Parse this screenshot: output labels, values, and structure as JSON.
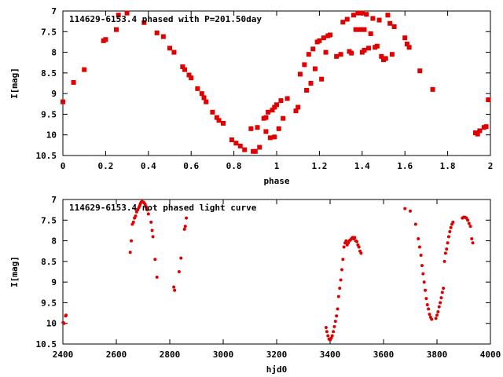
{
  "chart_data": [
    {
      "type": "scatter",
      "title": "114629-6153.4 phased with P=201.50day",
      "xlabel": "phase",
      "ylabel": "I[mag]",
      "xlim": [
        0,
        2
      ],
      "ylim": [
        10.5,
        7
      ],
      "y_inverted": true,
      "grid": false,
      "marker_color": "#e00000",
      "xticks": [
        0,
        0.2,
        0.4,
        0.6,
        0.8,
        1,
        1.2,
        1.4,
        1.6,
        1.8,
        2
      ],
      "xtick_labels": [
        "0",
        "0.2",
        "0.4",
        "0.6",
        "0.8",
        "1",
        "1.2",
        "1.4",
        "1.6",
        "1.8",
        "2"
      ],
      "yticks": [
        7,
        7.5,
        8,
        8.5,
        9,
        9.5,
        10,
        10.5
      ],
      "ytick_labels": [
        "7",
        "7.5",
        "8",
        "8.5",
        "9",
        "9.5",
        "10",
        "10.5"
      ],
      "points": [
        [
          0.0,
          9.2
        ],
        [
          0.05,
          8.73
        ],
        [
          0.1,
          8.42
        ],
        [
          0.19,
          7.72
        ],
        [
          0.2,
          7.69
        ],
        [
          0.25,
          7.45
        ],
        [
          0.26,
          7.1
        ],
        [
          0.3,
          7.05
        ],
        [
          0.38,
          7.28
        ],
        [
          0.44,
          7.53
        ],
        [
          0.47,
          7.62
        ],
        [
          0.5,
          7.9
        ],
        [
          0.52,
          8.0
        ],
        [
          0.56,
          8.35
        ],
        [
          0.57,
          8.42
        ],
        [
          0.59,
          8.55
        ],
        [
          0.6,
          8.62
        ],
        [
          0.63,
          8.88
        ],
        [
          0.65,
          9.0
        ],
        [
          0.66,
          9.1
        ],
        [
          0.67,
          9.2
        ],
        [
          0.7,
          9.45
        ],
        [
          0.72,
          9.58
        ],
        [
          0.73,
          9.65
        ],
        [
          0.75,
          9.72
        ],
        [
          0.79,
          10.12
        ],
        [
          0.81,
          10.2
        ],
        [
          0.83,
          10.27
        ],
        [
          0.85,
          10.36
        ],
        [
          0.88,
          9.85
        ],
        [
          0.89,
          10.4
        ],
        [
          0.9,
          10.4
        ],
        [
          0.91,
          9.82
        ],
        [
          0.92,
          10.3
        ],
        [
          0.94,
          9.6
        ],
        [
          0.95,
          9.58
        ],
        [
          0.95,
          9.92
        ],
        [
          0.96,
          9.45
        ],
        [
          0.98,
          9.4
        ],
        [
          0.99,
          9.33
        ],
        [
          1.0,
          9.27
        ],
        [
          1.02,
          9.17
        ],
        [
          0.97,
          10.07
        ],
        [
          0.99,
          10.05
        ],
        [
          1.01,
          9.85
        ],
        [
          1.03,
          9.6
        ],
        [
          1.05,
          9.12
        ],
        [
          1.09,
          9.42
        ],
        [
          1.1,
          9.33
        ],
        [
          1.11,
          8.53
        ],
        [
          1.13,
          8.3
        ],
        [
          1.14,
          8.92
        ],
        [
          1.15,
          8.05
        ],
        [
          1.16,
          8.75
        ],
        [
          1.17,
          7.92
        ],
        [
          1.18,
          8.4
        ],
        [
          1.19,
          7.75
        ],
        [
          1.2,
          7.72
        ],
        [
          1.21,
          8.65
        ],
        [
          1.22,
          7.65
        ],
        [
          1.23,
          8.0
        ],
        [
          1.24,
          7.6
        ],
        [
          1.25,
          7.58
        ],
        [
          1.28,
          8.1
        ],
        [
          1.3,
          8.05
        ],
        [
          1.31,
          7.27
        ],
        [
          1.33,
          7.2
        ],
        [
          1.34,
          7.98
        ],
        [
          1.35,
          8.02
        ],
        [
          1.36,
          7.1
        ],
        [
          1.37,
          7.45
        ],
        [
          1.38,
          7.05
        ],
        [
          1.39,
          7.45
        ],
        [
          1.4,
          8.0
        ],
        [
          1.4,
          7.05
        ],
        [
          1.41,
          7.45
        ],
        [
          1.41,
          7.95
        ],
        [
          1.42,
          7.08
        ],
        [
          1.43,
          7.9
        ],
        [
          1.44,
          7.55
        ],
        [
          1.45,
          7.18
        ],
        [
          1.46,
          7.88
        ],
        [
          1.47,
          7.85
        ],
        [
          1.48,
          7.22
        ],
        [
          1.49,
          8.1
        ],
        [
          1.5,
          8.18
        ],
        [
          1.51,
          8.15
        ],
        [
          1.52,
          7.1
        ],
        [
          1.53,
          7.3
        ],
        [
          1.54,
          8.05
        ],
        [
          1.55,
          7.38
        ],
        [
          1.6,
          7.65
        ],
        [
          1.61,
          7.8
        ],
        [
          1.62,
          7.88
        ],
        [
          1.67,
          8.45
        ],
        [
          1.73,
          8.9
        ],
        [
          1.93,
          9.95
        ],
        [
          1.94,
          9.98
        ],
        [
          1.95,
          9.9
        ],
        [
          1.97,
          9.82
        ],
        [
          1.98,
          9.8
        ],
        [
          1.99,
          9.15
        ]
      ]
    },
    {
      "type": "scatter",
      "title": "114629-6153.4 not phased light curve",
      "xlabel": "hjd0",
      "ylabel": "I[mag]",
      "xlim": [
        2400,
        4000
      ],
      "ylim": [
        10.5,
        7
      ],
      "y_inverted": true,
      "grid": false,
      "marker_color": "#e00000",
      "xticks": [
        2400,
        2600,
        2800,
        3000,
        3200,
        3400,
        3600,
        3800,
        4000
      ],
      "xtick_labels": [
        "2400",
        "2600",
        "2800",
        "3000",
        "3200",
        "3400",
        "3600",
        "3800",
        "4000"
      ],
      "yticks": [
        7,
        7.5,
        8,
        8.5,
        9,
        9.5,
        10,
        10.5
      ],
      "ytick_labels": [
        "7",
        "7.5",
        "8",
        "8.5",
        "9",
        "9.5",
        "10",
        "10.5"
      ],
      "points": [
        [
          2401,
          9.98
        ],
        [
          2404,
          10.0
        ],
        [
          2410,
          9.82
        ],
        [
          2412,
          9.8
        ],
        [
          2652,
          8.28
        ],
        [
          2656,
          8.0
        ],
        [
          2660,
          7.6
        ],
        [
          2664,
          7.55
        ],
        [
          2668,
          7.45
        ],
        [
          2672,
          7.4
        ],
        [
          2676,
          7.3
        ],
        [
          2680,
          7.25
        ],
        [
          2684,
          7.2
        ],
        [
          2688,
          7.15
        ],
        [
          2690,
          7.1
        ],
        [
          2693,
          7.07
        ],
        [
          2696,
          7.05
        ],
        [
          2700,
          7.06
        ],
        [
          2704,
          7.08
        ],
        [
          2708,
          7.12
        ],
        [
          2712,
          7.18
        ],
        [
          2716,
          7.25
        ],
        [
          2720,
          7.35
        ],
        [
          2730,
          7.55
        ],
        [
          2734,
          7.75
        ],
        [
          2737,
          7.9
        ],
        [
          2745,
          8.45
        ],
        [
          2752,
          8.88
        ],
        [
          2815,
          9.12
        ],
        [
          2818,
          9.2
        ],
        [
          2835,
          8.75
        ],
        [
          2842,
          8.42
        ],
        [
          2855,
          7.72
        ],
        [
          2858,
          7.65
        ],
        [
          2862,
          7.45
        ],
        [
          3385,
          10.1
        ],
        [
          3388,
          10.2
        ],
        [
          3392,
          10.3
        ],
        [
          3396,
          10.38
        ],
        [
          3400,
          10.4
        ],
        [
          3404,
          10.36
        ],
        [
          3408,
          10.3
        ],
        [
          3412,
          10.2
        ],
        [
          3416,
          10.08
        ],
        [
          3420,
          9.95
        ],
        [
          3424,
          9.82
        ],
        [
          3428,
          9.65
        ],
        [
          3432,
          9.35
        ],
        [
          3436,
          9.15
        ],
        [
          3440,
          8.95
        ],
        [
          3444,
          8.7
        ],
        [
          3448,
          8.45
        ],
        [
          3452,
          8.15
        ],
        [
          3456,
          8.05
        ],
        [
          3460,
          8.0
        ],
        [
          3464,
          8.1
        ],
        [
          3468,
          8.05
        ],
        [
          3472,
          8.0
        ],
        [
          3476,
          7.98
        ],
        [
          3480,
          7.95
        ],
        [
          3484,
          7.92
        ],
        [
          3488,
          7.95
        ],
        [
          3492,
          7.92
        ],
        [
          3496,
          8.0
        ],
        [
          3500,
          8.02
        ],
        [
          3504,
          8.1
        ],
        [
          3508,
          8.15
        ],
        [
          3512,
          8.25
        ],
        [
          3516,
          8.3
        ],
        [
          3680,
          7.22
        ],
        [
          3700,
          7.28
        ],
        [
          3720,
          7.6
        ],
        [
          3730,
          7.95
        ],
        [
          3735,
          8.15
        ],
        [
          3740,
          8.35
        ],
        [
          3744,
          8.6
        ],
        [
          3748,
          8.8
        ],
        [
          3752,
          9.0
        ],
        [
          3756,
          9.2
        ],
        [
          3760,
          9.4
        ],
        [
          3764,
          9.55
        ],
        [
          3768,
          9.65
        ],
        [
          3772,
          9.78
        ],
        [
          3776,
          9.85
        ],
        [
          3780,
          9.9
        ],
        [
          3796,
          9.88
        ],
        [
          3800,
          9.8
        ],
        [
          3804,
          9.72
        ],
        [
          3808,
          9.6
        ],
        [
          3812,
          9.5
        ],
        [
          3816,
          9.38
        ],
        [
          3820,
          9.25
        ],
        [
          3824,
          9.15
        ],
        [
          3828,
          8.5
        ],
        [
          3832,
          8.3
        ],
        [
          3836,
          8.2
        ],
        [
          3840,
          8.05
        ],
        [
          3844,
          7.9
        ],
        [
          3848,
          7.78
        ],
        [
          3852,
          7.68
        ],
        [
          3856,
          7.6
        ],
        [
          3860,
          7.55
        ],
        [
          3895,
          7.45
        ],
        [
          3900,
          7.43
        ],
        [
          3905,
          7.43
        ],
        [
          3910,
          7.45
        ],
        [
          3915,
          7.5
        ],
        [
          3920,
          7.58
        ],
        [
          3925,
          7.65
        ],
        [
          3930,
          7.95
        ],
        [
          3934,
          8.05
        ]
      ]
    }
  ]
}
